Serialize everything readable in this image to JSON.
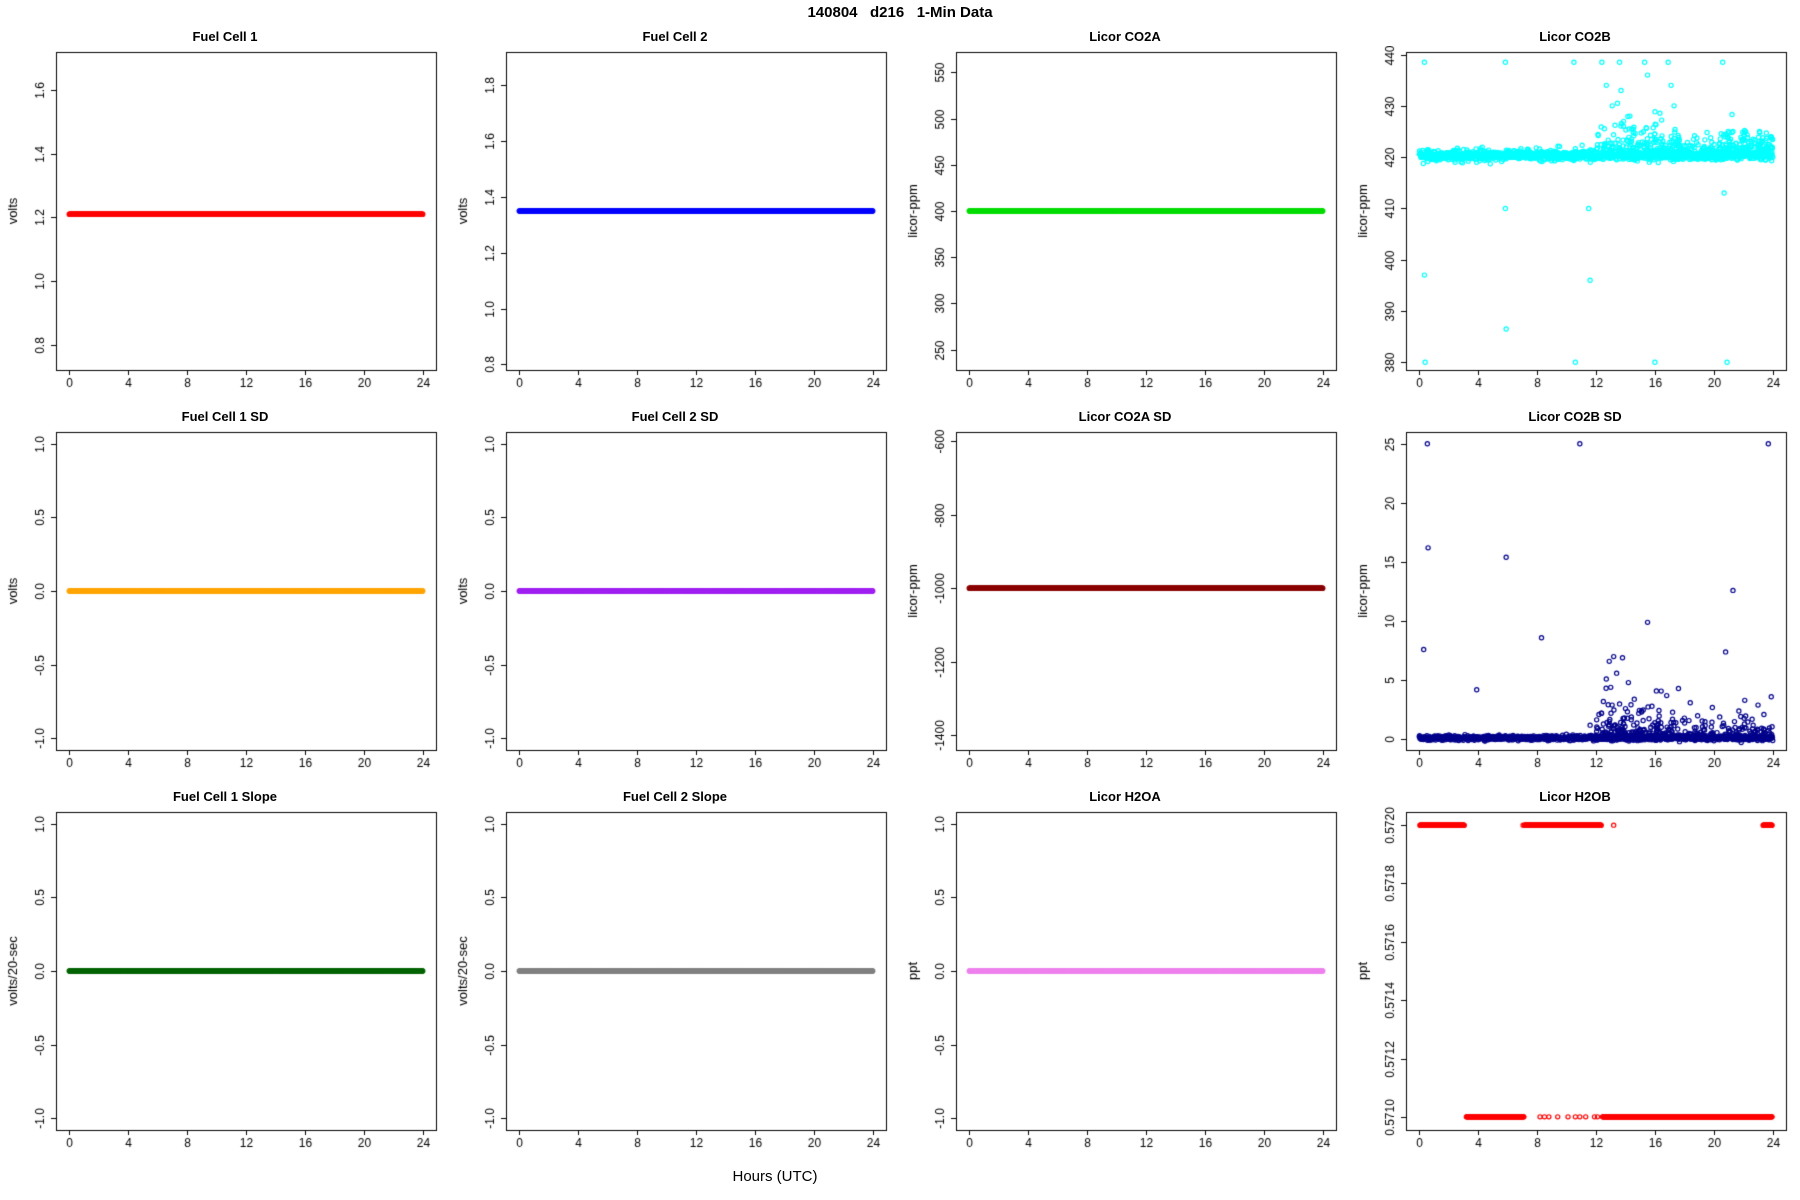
{
  "figure_title": "140804   d216   1-Min Data",
  "x_axis": {
    "label": "Hours (UTC)",
    "range": [
      -0.9,
      24.9
    ],
    "ticks": [
      0,
      4,
      8,
      12,
      16,
      20,
      24
    ],
    "tick_labels": [
      "0",
      "4",
      "8",
      "12",
      "16",
      "20",
      "24"
    ]
  },
  "chart_data": [
    {
      "type": "scatter",
      "title": "Fuel Cell 1",
      "ylabel": "volts",
      "ylim": [
        0.72,
        1.72
      ],
      "yticks": [
        0.8,
        1.0,
        1.2,
        1.4,
        1.6
      ],
      "ytick_labels": [
        "0.8",
        "1.0",
        "1.2",
        "1.4",
        "1.6"
      ],
      "color": "#FF0000",
      "series": {
        "kind": "flat",
        "y": 1.21,
        "x_start": 0,
        "x_end": 24,
        "count": 1200,
        "jitter": 0
      }
    },
    {
      "type": "scatter",
      "title": "Fuel Cell 2",
      "ylabel": "volts",
      "ylim": [
        0.78,
        1.92
      ],
      "yticks": [
        0.8,
        1.0,
        1.2,
        1.4,
        1.6,
        1.8
      ],
      "ytick_labels": [
        "0.8",
        "1.0",
        "1.2",
        "1.4",
        "1.6",
        "1.8"
      ],
      "color": "#0000FF",
      "series": {
        "kind": "flat",
        "y": 1.35,
        "x_start": 0,
        "x_end": 24,
        "count": 1200,
        "jitter": 0
      }
    },
    {
      "type": "scatter",
      "title": "Licor CO2A",
      "ylabel": "licor-ppm",
      "ylim": [
        228,
        572
      ],
      "yticks": [
        250,
        300,
        350,
        400,
        450,
        500,
        550
      ],
      "ytick_labels": [
        "250",
        "300",
        "350",
        "400",
        "450",
        "500",
        "550"
      ],
      "color": "#00DD00",
      "series": {
        "kind": "flat",
        "y": 400,
        "x_start": 0,
        "x_end": 24,
        "count": 1200,
        "jitter": 0
      }
    },
    {
      "type": "scatter",
      "title": "Licor CO2B",
      "ylabel": "licor-ppm",
      "ylim": [
        378.5,
        440.5
      ],
      "yticks": [
        380,
        390,
        400,
        410,
        420,
        430,
        440
      ],
      "ytick_labels": [
        "380",
        "390",
        "400",
        "410",
        "420",
        "430",
        "440"
      ],
      "color": "#00FFFF",
      "series": {
        "kind": "noisy",
        "baseline": {
          "y": 420.3,
          "sd": 0.4,
          "x_start": 0,
          "x_end": 24,
          "count": 1300
        },
        "regions": [
          {
            "x_start": 12,
            "x_end": 24,
            "y": 420.5,
            "sd": 1.8,
            "half": "up",
            "count": 260
          },
          {
            "x_start": 12.3,
            "x_end": 18,
            "y": 421,
            "sd": 3.5,
            "half": "up",
            "count": 80
          },
          {
            "x_start": 20,
            "x_end": 24,
            "y": 420.8,
            "sd": 2.2,
            "half": "up",
            "count": 60
          },
          {
            "x_start": 0,
            "x_end": 12,
            "y": 420.4,
            "sd": 0.7,
            "count": 120
          }
        ],
        "outliers": [
          [
            0.35,
            438.5
          ],
          [
            0.35,
            397
          ],
          [
            0.4,
            380
          ],
          [
            5.85,
            438.5
          ],
          [
            5.85,
            410
          ],
          [
            5.9,
            386.5
          ],
          [
            10.5,
            438.5
          ],
          [
            10.6,
            380
          ],
          [
            11.5,
            410
          ],
          [
            11.6,
            396
          ],
          [
            12.4,
            438.5
          ],
          [
            12.7,
            434
          ],
          [
            13.1,
            430
          ],
          [
            13.6,
            438.5
          ],
          [
            13.7,
            433
          ],
          [
            14.3,
            428
          ],
          [
            15.3,
            438.5
          ],
          [
            15.5,
            436
          ],
          [
            16.0,
            380
          ],
          [
            16.9,
            438.5
          ],
          [
            17.1,
            434
          ],
          [
            17.3,
            430
          ],
          [
            20.6,
            438.5
          ],
          [
            20.7,
            413
          ],
          [
            20.9,
            380
          ],
          [
            21.3,
            425
          ],
          [
            23.9,
            424
          ]
        ]
      }
    },
    {
      "type": "scatter",
      "title": "Fuel Cell 1 SD",
      "ylabel": "volts",
      "ylim": [
        -1.08,
        1.08
      ],
      "yticks": [
        -1.0,
        -0.5,
        0.0,
        0.5,
        1.0
      ],
      "ytick_labels": [
        "-1.0",
        "-0.5",
        "0.0",
        "0.5",
        "1.0"
      ],
      "color": "#FFA500",
      "series": {
        "kind": "flat",
        "y": 0,
        "x_start": 0,
        "x_end": 24,
        "count": 1200,
        "jitter": 0
      }
    },
    {
      "type": "scatter",
      "title": "Fuel Cell 2 SD",
      "ylabel": "volts",
      "ylim": [
        -1.08,
        1.08
      ],
      "yticks": [
        -1.0,
        -0.5,
        0.0,
        0.5,
        1.0
      ],
      "ytick_labels": [
        "-1.0",
        "-0.5",
        "0.0",
        "0.5",
        "1.0"
      ],
      "color": "#A020F0",
      "series": {
        "kind": "flat",
        "y": 0,
        "x_start": 0,
        "x_end": 24,
        "count": 1200,
        "jitter": 0
      }
    },
    {
      "type": "scatter",
      "title": "Licor CO2A SD",
      "ylabel": "licor-ppm",
      "ylim": [
        -1440,
        -575
      ],
      "yticks": [
        -1400,
        -1200,
        -1000,
        -800,
        -600
      ],
      "ytick_labels": [
        "-1400",
        "-1200",
        "-1000",
        "-800",
        "-600"
      ],
      "color": "#8B0000",
      "series": {
        "kind": "flat",
        "y": -1000,
        "x_start": 0,
        "x_end": 24,
        "count": 1200,
        "jitter": 0
      }
    },
    {
      "type": "scatter",
      "title": "Licor CO2B SD",
      "ylabel": "licor-ppm",
      "ylim": [
        -0.9,
        26
      ],
      "yticks": [
        0,
        5,
        10,
        15,
        20,
        25
      ],
      "ytick_labels": [
        "0",
        "5",
        "10",
        "15",
        "20",
        "25"
      ],
      "color": "#00008B",
      "series": {
        "kind": "noisy",
        "baseline": {
          "y": 0.12,
          "sd": 0.1,
          "x_start": 0,
          "x_end": 24,
          "count": 1300
        },
        "regions": [
          {
            "x_start": 12,
            "x_end": 24,
            "y": 0.15,
            "sd": 0.7,
            "half": "up",
            "count": 220
          },
          {
            "x_start": 12.3,
            "x_end": 16.5,
            "y": 0.2,
            "sd": 1.6,
            "half": "up",
            "count": 60
          }
        ],
        "outliers": [
          [
            0.3,
            7.6
          ],
          [
            0.55,
            25
          ],
          [
            0.6,
            16.2
          ],
          [
            3.9,
            4.2
          ],
          [
            5.9,
            15.4
          ],
          [
            8.3,
            8.6
          ],
          [
            10.9,
            25
          ],
          [
            11.6,
            1.2
          ],
          [
            12.2,
            2.1
          ],
          [
            12.5,
            3.2
          ],
          [
            12.7,
            5.1
          ],
          [
            12.9,
            6.6
          ],
          [
            13.0,
            4.4
          ],
          [
            13.2,
            7.0
          ],
          [
            13.4,
            5.6
          ],
          [
            13.6,
            3.0
          ],
          [
            13.8,
            6.9
          ],
          [
            14.0,
            2.6
          ],
          [
            14.2,
            4.8
          ],
          [
            14.4,
            1.9
          ],
          [
            14.6,
            3.4
          ],
          [
            14.9,
            2.2
          ],
          [
            15.2,
            1.6
          ],
          [
            15.5,
            9.9
          ],
          [
            15.8,
            2.8
          ],
          [
            16.1,
            4.1
          ],
          [
            16.4,
            1.4
          ],
          [
            16.8,
            3.7
          ],
          [
            17.2,
            2.3
          ],
          [
            17.6,
            4.3
          ],
          [
            18.0,
            1.8
          ],
          [
            18.4,
            3.1
          ],
          [
            18.9,
            2.0
          ],
          [
            19.4,
            1.5
          ],
          [
            19.9,
            2.7
          ],
          [
            20.4,
            1.9
          ],
          [
            20.8,
            7.4
          ],
          [
            21.3,
            12.6
          ],
          [
            21.7,
            2.4
          ],
          [
            22.1,
            3.3
          ],
          [
            22.6,
            1.7
          ],
          [
            23.0,
            2.9
          ],
          [
            23.4,
            2.1
          ],
          [
            23.7,
            25
          ],
          [
            23.9,
            3.6
          ]
        ]
      }
    },
    {
      "type": "scatter",
      "title": "Fuel Cell 1 Slope",
      "ylabel": "volts/20-sec",
      "ylim": [
        -1.08,
        1.08
      ],
      "yticks": [
        -1.0,
        -0.5,
        0.0,
        0.5,
        1.0
      ],
      "ytick_labels": [
        "-1.0",
        "-0.5",
        "0.0",
        "0.5",
        "1.0"
      ],
      "color": "#006400",
      "series": {
        "kind": "flat",
        "y": 0,
        "x_start": 0,
        "x_end": 24,
        "count": 1200,
        "jitter": 0
      }
    },
    {
      "type": "scatter",
      "title": "Fuel Cell 2 Slope",
      "ylabel": "volts/20-sec",
      "ylim": [
        -1.08,
        1.08
      ],
      "yticks": [
        -1.0,
        -0.5,
        0.0,
        0.5,
        1.0
      ],
      "ytick_labels": [
        "-1.0",
        "-0.5",
        "0.0",
        "0.5",
        "1.0"
      ],
      "color": "#808080",
      "series": {
        "kind": "flat",
        "y": 0,
        "x_start": 0,
        "x_end": 24,
        "count": 1200,
        "jitter": 0
      }
    },
    {
      "type": "scatter",
      "title": "Licor H2OA",
      "ylabel": "ppt",
      "ylim": [
        -1.08,
        1.08
      ],
      "yticks": [
        -1.0,
        -0.5,
        0.0,
        0.5,
        1.0
      ],
      "ytick_labels": [
        "-1.0",
        "-0.5",
        "0.0",
        "0.5",
        "1.0"
      ],
      "color": "#EE82EE",
      "series": {
        "kind": "flat",
        "y": 0,
        "x_start": 0,
        "x_end": 24,
        "count": 1200,
        "jitter": 0
      }
    },
    {
      "type": "scatter",
      "title": "Licor H2OB",
      "ylabel": "ppt",
      "ylim": [
        0.570955,
        0.572045
      ],
      "yticks": [
        0.571,
        0.5712,
        0.5714,
        0.5716,
        0.5718,
        0.572
      ],
      "ytick_labels": [
        "0.5710",
        "0.5712",
        "0.5714",
        "0.5716",
        "0.5718",
        "0.5720"
      ],
      "color": "#FF0000",
      "series": {
        "kind": "segments",
        "segments": [
          {
            "x_start": 0.05,
            "x_end": 3.05,
            "y": 0.572
          },
          {
            "x_start": 7.15,
            "x_end": 12.35,
            "y": 0.572
          },
          {
            "x_start": 23.35,
            "x_end": 23.95,
            "y": 0.572
          },
          {
            "x_start": 3.2,
            "x_end": 7.1,
            "y": 0.571
          },
          {
            "x_start": 12.45,
            "x_end": 23.95,
            "y": 0.571
          }
        ],
        "points": [
          [
            13.2,
            0.572
          ],
          [
            7.05,
            0.572
          ],
          [
            8.2,
            0.571
          ],
          [
            8.5,
            0.571
          ],
          [
            8.8,
            0.571
          ],
          [
            9.4,
            0.571
          ],
          [
            10.1,
            0.571
          ],
          [
            10.6,
            0.571
          ],
          [
            10.9,
            0.571
          ],
          [
            11.3,
            0.571
          ],
          [
            11.9,
            0.571
          ],
          [
            12.1,
            0.571
          ]
        ]
      }
    }
  ]
}
